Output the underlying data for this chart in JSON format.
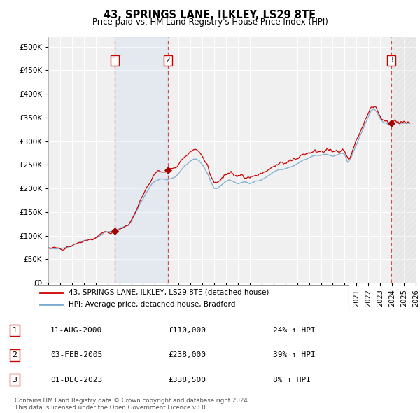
{
  "title": "43, SPRINGS LANE, ILKLEY, LS29 8TE",
  "subtitle": "Price paid vs. HM Land Registry's House Price Index (HPI)",
  "ylim": [
    0,
    520000
  ],
  "yticks": [
    0,
    50000,
    100000,
    150000,
    200000,
    250000,
    300000,
    350000,
    400000,
    450000,
    500000
  ],
  "xlim_start": 1995.0,
  "xlim_end": 2026.0,
  "background_color": "#ffffff",
  "plot_bg_color": "#f0f0f0",
  "grid_color": "#ffffff",
  "sale_color": "#cc0000",
  "hpi_color": "#7aabcf",
  "sale_label": "43, SPRINGS LANE, ILKLEY, LS29 8TE (detached house)",
  "hpi_label": "HPI: Average price, detached house, Bradford",
  "transactions": [
    {
      "num": 1,
      "date_str": "11-AUG-2000",
      "price": 110000,
      "pct": "24%",
      "date_x": 2000.625
    },
    {
      "num": 2,
      "date_str": "03-FEB-2005",
      "price": 238000,
      "pct": "39%",
      "date_x": 2005.083
    },
    {
      "num": 3,
      "date_str": "01-DEC-2023",
      "price": 338500,
      "pct": "8%",
      "date_x": 2023.917
    }
  ],
  "footer_line1": "Contains HM Land Registry data © Crown copyright and database right 2024.",
  "footer_line2": "This data is licensed under the Open Government Licence v3.0."
}
